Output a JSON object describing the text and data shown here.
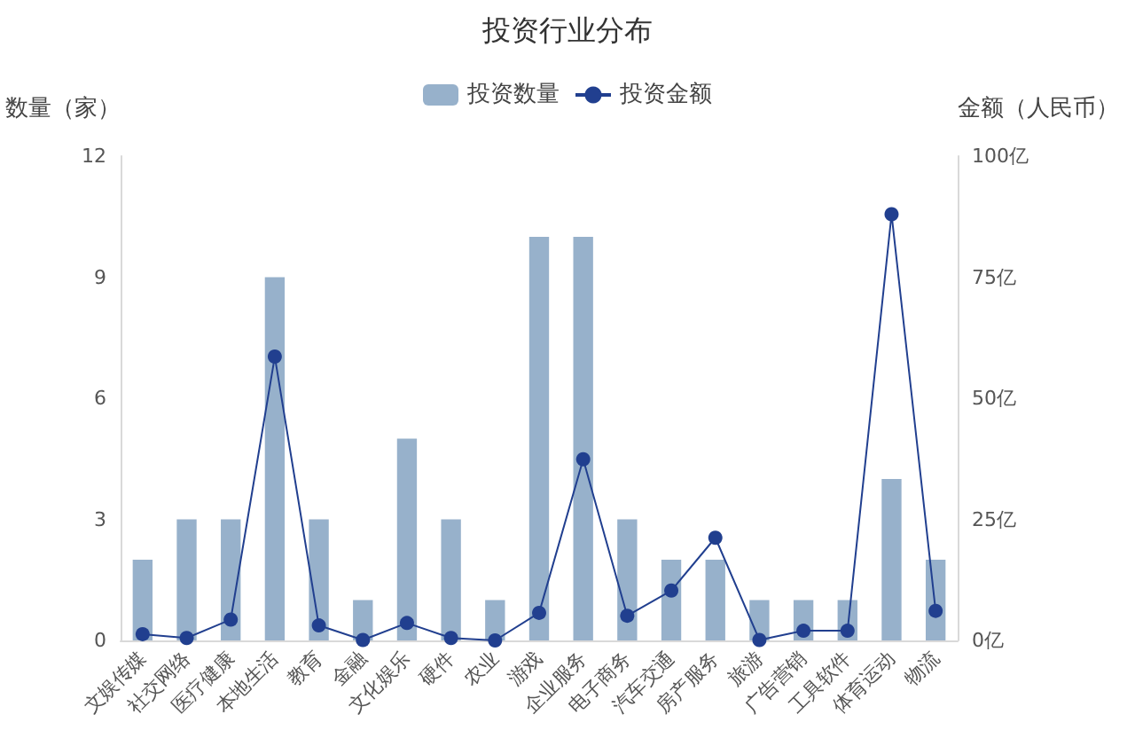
{
  "chart_data": {
    "type": "bar",
    "title": "投资行业分布",
    "ylabel": "数量（家）",
    "y2label": "金额（人民币）",
    "categories": [
      "文娱传媒",
      "社交网络",
      "医疗健康",
      "本地生活",
      "教育",
      "金融",
      "文化娱乐",
      "硬件",
      "农业",
      "游戏",
      "企业服务",
      "电子商务",
      "汽车交通",
      "房产服务",
      "旅游",
      "广告营销",
      "工具软件",
      "体育运动",
      "物流"
    ],
    "series": [
      {
        "name": "投资数量",
        "color": "#97b1cb",
        "values": [
          2,
          3,
          3,
          9,
          3,
          1,
          5,
          3,
          1,
          10,
          10,
          3,
          2,
          2,
          1,
          1,
          1,
          4,
          2
        ]
      },
      {
        "name": "投资金额",
        "type": "line",
        "axis": "y2",
        "color": "#213f8f",
        "marker": "circle",
        "values": [
          1.3,
          0.5,
          4.3,
          58.6,
          3.1,
          0.1,
          3.6,
          0.5,
          0,
          5.7,
          37.4,
          5.1,
          10.3,
          21.2,
          0.1,
          2,
          2,
          88,
          6.1
        ]
      }
    ],
    "ylim": [
      0,
      12
    ],
    "yticks": [
      0,
      3,
      6,
      9,
      12
    ],
    "y2lim": [
      0,
      100
    ],
    "y2ticks": [
      {
        "value": 0,
        "label": "0亿"
      },
      {
        "value": 25,
        "label": "25亿"
      },
      {
        "value": 50,
        "label": "50亿"
      },
      {
        "value": 75,
        "label": "75亿"
      },
      {
        "value": 100,
        "label": "100亿"
      }
    ],
    "grid": false,
    "legend": "top"
  }
}
